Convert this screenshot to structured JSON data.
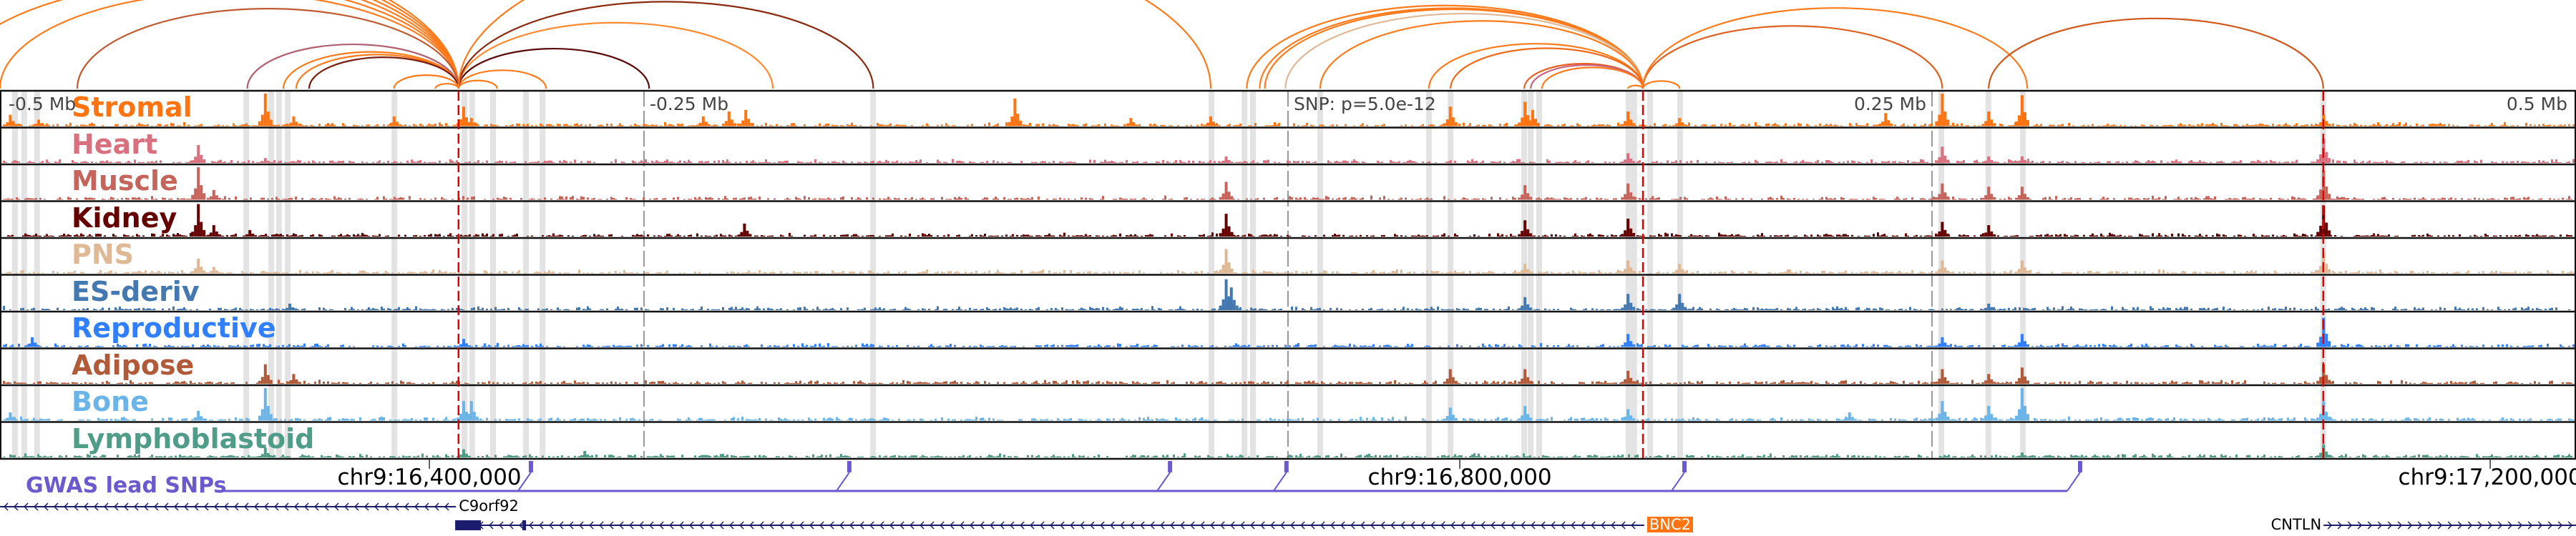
{
  "region": {
    "center_label": "SNP: p=5.0e-12",
    "range_mb": [
      -0.5,
      0.5
    ]
  },
  "offset_labels": [
    {
      "text": "-0.5 Mb",
      "mb": -0.5,
      "align": "left"
    },
    {
      "text": "-0.25 Mb",
      "mb": -0.25,
      "align": "left"
    },
    {
      "text": "SNP: p=5.0e-12",
      "mb": 0.0,
      "align": "left"
    },
    {
      "text": "0.25 Mb",
      "mb": 0.25,
      "align": "right"
    },
    {
      "text": "0.5 Mb",
      "mb": 0.5,
      "align": "right"
    }
  ],
  "offset_marks_mb": [
    -0.25,
    0.0,
    0.25
  ],
  "highlight_variants_mb": [
    -0.322,
    0.1378,
    0.4019
  ],
  "enhancer_columns_mb": [
    -0.4942,
    -0.4906,
    -0.4856,
    -0.4044,
    -0.3947,
    -0.3917,
    -0.3883,
    -0.3469,
    -0.3197,
    -0.3167,
    -0.3086,
    -0.2958,
    -0.2894,
    -0.1611,
    -0.0297,
    -0.0169,
    -0.0136,
    0.0125,
    0.0547,
    0.0631,
    0.0917,
    0.0942,
    0.0975,
    0.1322,
    0.1344,
    0.1406,
    0.1522,
    0.2536,
    0.2719,
    0.2853,
    0.4019
  ],
  "loops": [
    {
      "start": -0.6,
      "end": -0.322,
      "color": "#ff7a1a"
    },
    {
      "start": -0.58,
      "end": -0.322,
      "color": "#ff7a1a"
    },
    {
      "start": -0.56,
      "end": -0.322,
      "color": "#ff7a1a"
    },
    {
      "start": -0.54,
      "end": -0.322,
      "color": "#ff7a1a"
    },
    {
      "start": -0.52,
      "end": -0.322,
      "color": "#ff7a1a"
    },
    {
      "start": -0.5,
      "end": -0.322,
      "color": "#ff7a1a"
    },
    {
      "start": -0.47,
      "end": -0.322,
      "color": "#c05a30"
    },
    {
      "start": -0.404,
      "end": -0.322,
      "color": "#b06070"
    },
    {
      "start": -0.39,
      "end": -0.322,
      "color": "#ff7a1a"
    },
    {
      "start": -0.385,
      "end": -0.322,
      "color": "#ff7a1a"
    },
    {
      "start": -0.38,
      "end": -0.322,
      "color": "#7a1e10"
    },
    {
      "start": -0.347,
      "end": -0.322,
      "color": "#ff7a1a"
    },
    {
      "start": -0.331,
      "end": -0.322,
      "color": "#ff7a1a"
    },
    {
      "start": -0.322,
      "end": -0.307,
      "color": "#ff7a1a"
    },
    {
      "start": -0.322,
      "end": -0.288,
      "color": "#ff7a1a"
    },
    {
      "start": -0.322,
      "end": -0.248,
      "color": "#5a0a0a"
    },
    {
      "start": -0.322,
      "end": -0.2,
      "color": "#ff8a30"
    },
    {
      "start": -0.322,
      "end": -0.161,
      "color": "#8b2a10"
    },
    {
      "start": -0.322,
      "end": -0.03,
      "color": "#ff7a1a"
    },
    {
      "start": -0.016,
      "end": 0.1378,
      "color": "#ff7a1a"
    },
    {
      "start": -0.011,
      "end": 0.1378,
      "color": "#ff7a1a"
    },
    {
      "start": -0.009,
      "end": 0.1378,
      "color": "#ff7a1a"
    },
    {
      "start": -0.001,
      "end": 0.1378,
      "color": "#dfb896"
    },
    {
      "start": 0.0125,
      "end": 0.1378,
      "color": "#ff7a1a"
    },
    {
      "start": 0.0547,
      "end": 0.1378,
      "color": "#ff7a1a"
    },
    {
      "start": 0.0631,
      "end": 0.1378,
      "color": "#f06a1a"
    },
    {
      "start": 0.0917,
      "end": 0.1378,
      "color": "#e86020"
    },
    {
      "start": 0.0942,
      "end": 0.1378,
      "color": "#c86080"
    },
    {
      "start": 0.0986,
      "end": 0.1378,
      "color": "#ff7a1a"
    },
    {
      "start": 0.132,
      "end": 0.1378,
      "color": "#ff7a1a"
    },
    {
      "start": 0.1378,
      "end": 0.152,
      "color": "#ff7a1a"
    },
    {
      "start": 0.1378,
      "end": 0.254,
      "color": "#e06020"
    },
    {
      "start": 0.1378,
      "end": 0.287,
      "color": "#ff7a1a"
    },
    {
      "start": 0.272,
      "end": 0.4019,
      "color": "#d0581a"
    }
  ],
  "tracks": [
    {
      "name": "Stromal",
      "color": "#ff7410",
      "peaks": [
        [
          -0.496,
          0.35
        ],
        [
          -0.485,
          0.2
        ],
        [
          -0.397,
          1.0
        ],
        [
          -0.386,
          0.3
        ],
        [
          -0.347,
          0.3
        ],
        [
          -0.32,
          0.6
        ],
        [
          -0.317,
          0.25
        ],
        [
          -0.227,
          0.3
        ],
        [
          -0.217,
          0.45
        ],
        [
          -0.2105,
          0.5
        ],
        [
          -0.106,
          0.85
        ],
        [
          -0.061,
          0.25
        ],
        [
          -0.03,
          0.3
        ],
        [
          0.063,
          0.6
        ],
        [
          0.092,
          0.75
        ],
        [
          0.095,
          0.5
        ],
        [
          0.132,
          0.45
        ],
        [
          0.152,
          0.25
        ],
        [
          0.232,
          0.4
        ],
        [
          0.254,
          1.0
        ],
        [
          0.272,
          0.45
        ],
        [
          0.285,
          0.95
        ],
        [
          0.402,
          0.35
        ]
      ]
    },
    {
      "name": "Heart",
      "color": "#d8707f",
      "peaks": [
        [
          -0.423,
          0.55
        ],
        [
          -0.397,
          0.15
        ],
        [
          -0.024,
          0.2
        ],
        [
          0.132,
          0.3
        ],
        [
          0.254,
          0.5
        ],
        [
          0.272,
          0.2
        ],
        [
          0.285,
          0.2
        ],
        [
          0.402,
          0.75
        ]
      ]
    },
    {
      "name": "Muscle",
      "color": "#c4645a",
      "peaks": [
        [
          -0.423,
          1.0
        ],
        [
          -0.417,
          0.3
        ],
        [
          -0.024,
          0.55
        ],
        [
          0.092,
          0.45
        ],
        [
          0.132,
          0.5
        ],
        [
          0.254,
          0.5
        ],
        [
          0.272,
          0.4
        ],
        [
          0.285,
          0.4
        ],
        [
          0.402,
          0.9
        ]
      ]
    },
    {
      "name": "Kidney",
      "color": "#650000",
      "peaks": [
        [
          -0.423,
          1.0
        ],
        [
          -0.417,
          0.35
        ],
        [
          -0.403,
          0.2
        ],
        [
          -0.211,
          0.4
        ],
        [
          -0.024,
          0.7
        ],
        [
          0.092,
          0.5
        ],
        [
          0.132,
          0.55
        ],
        [
          0.254,
          0.45
        ],
        [
          0.272,
          0.35
        ],
        [
          0.402,
          0.95
        ]
      ]
    },
    {
      "name": "PNS",
      "color": "#dfb896",
      "peaks": [
        [
          -0.423,
          0.45
        ],
        [
          -0.417,
          0.2
        ],
        [
          -0.024,
          0.75
        ],
        [
          0.092,
          0.3
        ],
        [
          0.132,
          0.4
        ],
        [
          0.152,
          0.3
        ],
        [
          0.254,
          0.4
        ],
        [
          0.285,
          0.4
        ],
        [
          0.402,
          0.65
        ]
      ]
    },
    {
      "name": "ES-deriv",
      "color": "#4478b0",
      "peaks": [
        [
          -0.3875,
          0.2
        ],
        [
          -0.024,
          0.95
        ],
        [
          -0.022,
          0.7
        ],
        [
          0.092,
          0.4
        ],
        [
          0.132,
          0.5
        ],
        [
          0.152,
          0.5
        ],
        [
          0.272,
          0.2
        ]
      ]
    },
    {
      "name": "Reproductive",
      "color": "#2f7fff",
      "peaks": [
        [
          -0.4875,
          0.3
        ],
        [
          -0.32,
          0.25
        ],
        [
          0.132,
          0.4
        ],
        [
          0.254,
          0.3
        ],
        [
          0.285,
          0.4
        ],
        [
          0.402,
          0.9
        ]
      ]
    },
    {
      "name": "Adipose",
      "color": "#b05a3a",
      "peaks": [
        [
          -0.397,
          0.6
        ],
        [
          -0.386,
          0.3
        ],
        [
          0.063,
          0.45
        ],
        [
          0.092,
          0.45
        ],
        [
          0.132,
          0.4
        ],
        [
          0.254,
          0.45
        ],
        [
          0.272,
          0.3
        ],
        [
          0.285,
          0.5
        ],
        [
          0.402,
          0.6
        ]
      ]
    },
    {
      "name": "Bone",
      "color": "#6ab4e8",
      "peaks": [
        [
          -0.496,
          0.25
        ],
        [
          -0.423,
          0.3
        ],
        [
          -0.397,
          1.0
        ],
        [
          -0.32,
          0.6
        ],
        [
          -0.317,
          0.6
        ],
        [
          0.063,
          0.4
        ],
        [
          0.092,
          0.45
        ],
        [
          0.132,
          0.35
        ],
        [
          0.218,
          0.25
        ],
        [
          0.254,
          0.6
        ],
        [
          0.272,
          0.45
        ],
        [
          0.285,
          1.0
        ],
        [
          0.402,
          0.6
        ]
      ]
    },
    {
      "name": "Lymphoblastoid",
      "color": "#4f9c88",
      "peaks": [
        [
          -0.397,
          0.3
        ],
        [
          -0.32,
          0.25
        ],
        [
          -0.273,
          0.2
        ],
        [
          0.285,
          0.15
        ],
        [
          0.402,
          0.4
        ]
      ]
    }
  ],
  "axis": {
    "ticks": [
      {
        "label": "chr9:16,400,000",
        "mb": -0.3333
      },
      {
        "label": "chr9:16,800,000",
        "mb": 0.0667
      },
      {
        "label": "chr9:17,200,000",
        "mb": 0.4667
      }
    ]
  },
  "gwas": {
    "label": "GWAS lead SNPs",
    "color": "#6a5acd",
    "snps_mb": [
      -0.2939,
      -0.1703,
      -0.0458,
      -0.0006,
      0.1539,
      0.3075
    ]
  },
  "genes": [
    {
      "name": "C9orf92",
      "start": -0.5,
      "end": -0.323,
      "strand": "-",
      "row": 0,
      "highlight": false
    },
    {
      "name": "BNC2",
      "start": -0.3233,
      "end": 0.1383,
      "strand": "-",
      "row": 1,
      "highlight": true
    },
    {
      "name": "CNTLN",
      "start": 0.402,
      "end": 0.5,
      "strand": "+",
      "row": 1,
      "highlight": false
    }
  ],
  "colors": {
    "gene_line": "#1c1c6e",
    "highlight_variant": "#e00000",
    "enhancer": "#e3e3e3",
    "gene_highlight": "#ff7410"
  }
}
